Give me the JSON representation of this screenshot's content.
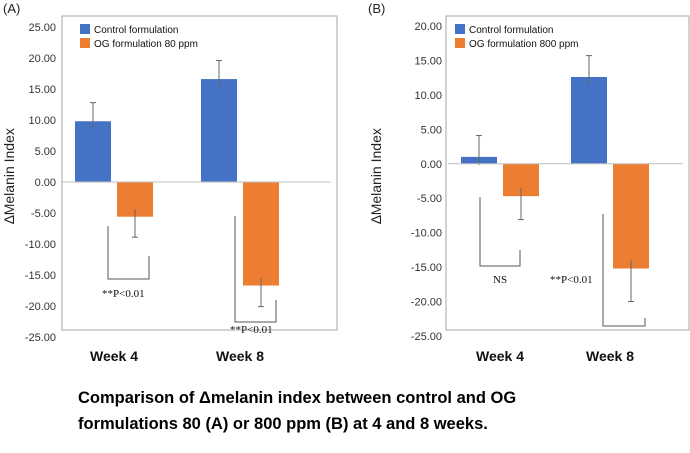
{
  "caption": {
    "line1": "Comparison of Δmelanin index between control and OG",
    "line2": "formulations 80 (A) or 800 ppm (B) at 4 and 8 weeks."
  },
  "colors": {
    "control": "#4472C4",
    "og": "#ED7D31",
    "axis": "#BFBFBF",
    "frame": "#A6A6A6"
  },
  "chart_data": [
    {
      "type": "bar",
      "panel_label": "(A)",
      "ylabel": "∆Melanin Index",
      "ylim": [
        -25,
        25
      ],
      "yticks": [
        "25.00",
        "20.00",
        "15.00",
        "10.00",
        "5.00",
        "0.00",
        "-5.00",
        "-10.00",
        "-15.00",
        "-20.00",
        "-25.00"
      ],
      "ytick_values": [
        25,
        20,
        15,
        10,
        5,
        0,
        -5,
        -10,
        -15,
        -20,
        -25
      ],
      "categories": [
        "Week 4",
        "Week 8"
      ],
      "series": [
        {
          "name": "Control formulation",
          "values": [
            9.8,
            16.6
          ],
          "errors": [
            3.0,
            3.0
          ]
        },
        {
          "name": "OG formulation 80 ppm",
          "values": [
            -5.6,
            -16.7
          ],
          "errors": [
            3.3,
            3.4
          ]
        }
      ],
      "legend": "top-left",
      "annotations": [
        "**P<0.01",
        "**P<0.01"
      ]
    },
    {
      "type": "bar",
      "panel_label": "(B)",
      "ylabel": "∆Melanin Index",
      "ylim": [
        -25,
        20
      ],
      "yticks": [
        "20.00",
        "15.00",
        "10.00",
        "5.00",
        "0.00",
        "-5.00",
        "-10.00",
        "-15.00",
        "-20.00",
        "-25.00"
      ],
      "ytick_values": [
        20,
        15,
        10,
        5,
        0,
        -5,
        -10,
        -15,
        -20,
        -25
      ],
      "categories": [
        "Week 4",
        "Week 8"
      ],
      "series": [
        {
          "name": "Control formulation",
          "values": [
            1.0,
            12.6
          ],
          "errors": [
            3.1,
            3.1
          ]
        },
        {
          "name": "OG formulation 800 ppm",
          "values": [
            -4.7,
            -15.2
          ],
          "errors": [
            3.4,
            4.8
          ]
        }
      ],
      "legend": "top-left",
      "annotations": [
        "NS",
        "**P<0.01"
      ]
    }
  ]
}
